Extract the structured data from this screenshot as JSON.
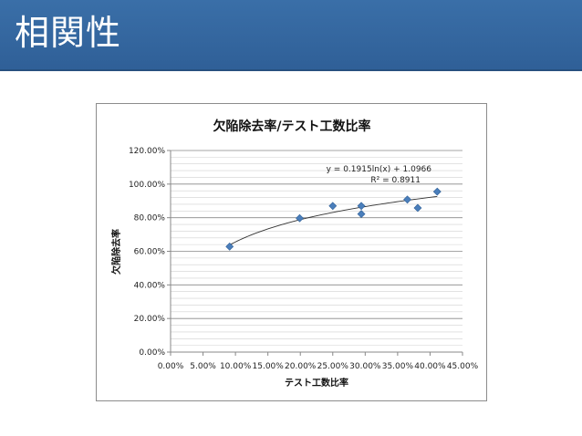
{
  "slide": {
    "title": "相関性"
  },
  "chart_data": {
    "type": "scatter",
    "title": "欠陥除去率/テスト工数比率",
    "xlabel": "テスト工数比率",
    "ylabel": "欠陥除去率",
    "xlim": [
      0,
      0.45
    ],
    "ylim": [
      0,
      1.2
    ],
    "x_ticks": [
      "0.00%",
      "5.00%",
      "10.00%",
      "15.00%",
      "20.00%",
      "25.00%",
      "30.00%",
      "35.00%",
      "40.00%",
      "45.00%"
    ],
    "y_ticks": [
      "0.00%",
      "20.00%",
      "40.00%",
      "60.00%",
      "80.00%",
      "100.00%",
      "120.00%"
    ],
    "series": [
      {
        "x": [
          0.091,
          0.199,
          0.25,
          0.294,
          0.294,
          0.365,
          0.381,
          0.411
        ],
        "y": [
          0.628,
          0.797,
          0.87,
          0.87,
          0.822,
          0.908,
          0.858,
          0.955
        ],
        "color": "#4a7ebb",
        "marker": "diamond"
      }
    ],
    "trendline": {
      "type": "logarithmic",
      "a": 0.1915,
      "b": 1.0966,
      "equation": "y = 0.1915ln(x) + 1.0966",
      "r2_label": "R² = 0.8911",
      "color": "#333333"
    },
    "grid": true,
    "legend": "none"
  }
}
